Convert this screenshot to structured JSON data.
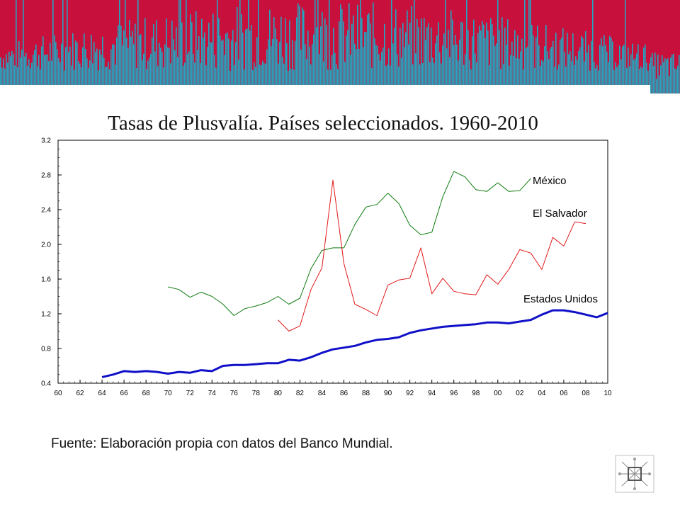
{
  "colors": {
    "banner_red": "#c8103c",
    "banner_teal": "#22a6c0",
    "mexico": "#0e7a0e",
    "el_salvador": "#e01818",
    "estados_unidos": "#1010c8",
    "axis": "#000000"
  },
  "icons": {
    "corner_logo": "compass-rose-icon"
  },
  "footer": {
    "source": "Fuente: Elaboración propia con datos del Banco Mundial."
  },
  "chart_data": {
    "type": "line",
    "title": "Tasas de Plusvalía. Países seleccionados. 1960-2010",
    "xlabel": "",
    "ylabel": "",
    "xlim": [
      1960,
      2010
    ],
    "ylim": [
      0.4,
      3.2
    ],
    "x_ticks": [
      "60",
      "62",
      "64",
      "66",
      "68",
      "70",
      "72",
      "74",
      "76",
      "78",
      "80",
      "82",
      "84",
      "86",
      "88",
      "90",
      "92",
      "94",
      "96",
      "98",
      "00",
      "02",
      "04",
      "06",
      "08",
      "10"
    ],
    "y_ticks": [
      "0.4",
      "0.8",
      "1.2",
      "1.6",
      "2.0",
      "2.4",
      "2.8",
      "3.2"
    ],
    "grid": false,
    "legend": "inline labels at series ends",
    "series": [
      {
        "name": "México",
        "color": "#0e7a0e",
        "x": [
          1970,
          1971,
          1972,
          1973,
          1974,
          1975,
          1976,
          1977,
          1978,
          1979,
          1980,
          1981,
          1982,
          1983,
          1984,
          1985,
          1986,
          1987,
          1988,
          1989,
          1990,
          1991,
          1992,
          1993,
          1994,
          1995,
          1996,
          1997,
          1998,
          1999,
          2000,
          2001,
          2002,
          2003
        ],
        "values": [
          1.51,
          1.48,
          1.39,
          1.45,
          1.4,
          1.31,
          1.18,
          1.26,
          1.29,
          1.33,
          1.4,
          1.31,
          1.38,
          1.72,
          1.93,
          1.96,
          1.96,
          2.23,
          2.43,
          2.46,
          2.59,
          2.47,
          2.22,
          2.11,
          2.14,
          2.55,
          2.84,
          2.78,
          2.63,
          2.61,
          2.71,
          2.61,
          2.62,
          2.76
        ]
      },
      {
        "name": "El Salvador",
        "color": "#e01818",
        "x": [
          1980,
          1981,
          1982,
          1983,
          1984,
          1985,
          1986,
          1987,
          1988,
          1989,
          1990,
          1991,
          1992,
          1993,
          1994,
          1995,
          1996,
          1997,
          1998,
          1999,
          2000,
          2001,
          2002,
          2003,
          2004,
          2005,
          2006,
          2007,
          2008
        ],
        "values": [
          1.13,
          1.0,
          1.06,
          1.48,
          1.73,
          2.74,
          1.78,
          1.31,
          1.25,
          1.18,
          1.53,
          1.59,
          1.61,
          1.96,
          1.43,
          1.61,
          1.46,
          1.43,
          1.42,
          1.65,
          1.54,
          1.71,
          1.94,
          1.9,
          1.71,
          2.08,
          1.98,
          2.26,
          2.24
        ]
      },
      {
        "name": "Estados Unidos",
        "color": "#1010c8",
        "x": [
          1964,
          1965,
          1966,
          1967,
          1968,
          1969,
          1970,
          1971,
          1972,
          1973,
          1974,
          1975,
          1976,
          1977,
          1978,
          1979,
          1980,
          1981,
          1982,
          1983,
          1984,
          1985,
          1986,
          1987,
          1988,
          1989,
          1990,
          1991,
          1992,
          1993,
          1994,
          1995,
          1996,
          1997,
          1998,
          1999,
          2000,
          2001,
          2002,
          2003,
          2004,
          2005,
          2006,
          2007,
          2008,
          2009,
          2010
        ],
        "values": [
          0.47,
          0.5,
          0.54,
          0.53,
          0.54,
          0.53,
          0.51,
          0.53,
          0.52,
          0.55,
          0.54,
          0.6,
          0.61,
          0.61,
          0.62,
          0.63,
          0.63,
          0.67,
          0.66,
          0.7,
          0.75,
          0.79,
          0.81,
          0.83,
          0.87,
          0.9,
          0.91,
          0.93,
          0.98,
          1.01,
          1.03,
          1.05,
          1.06,
          1.07,
          1.08,
          1.1,
          1.1,
          1.09,
          1.11,
          1.13,
          1.19,
          1.24,
          1.24,
          1.22,
          1.19,
          1.16,
          1.21
        ]
      }
    ]
  }
}
